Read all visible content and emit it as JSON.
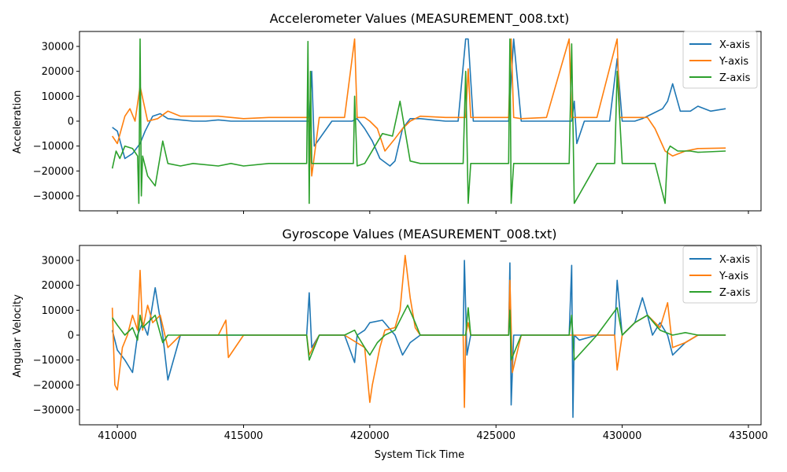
{
  "chart_data": [
    {
      "type": "line",
      "title": "Accelerometer Values (MEASUREMENT_008.txt)",
      "xlabel": "",
      "ylabel": "Acceleration",
      "xlim": [
        408500,
        435500
      ],
      "ylim": [
        -36000,
        36000
      ],
      "xticks": [
        410000,
        415000,
        420000,
        425000,
        430000,
        435000
      ],
      "xtick_labels_shown": false,
      "yticks": [
        -30000,
        -20000,
        -10000,
        0,
        10000,
        20000,
        30000
      ],
      "ytick_labels": [
        "−30000",
        "−20000",
        "−10000",
        "0",
        "10000",
        "20000",
        "30000"
      ],
      "legend": "top-right",
      "grid": false,
      "series": [
        {
          "name": "X-axis",
          "color": "#1f77b4",
          "x": [
            409800,
            410000,
            410300,
            410600,
            410900,
            411100,
            411400,
            411700,
            412000,
            412500,
            413000,
            413500,
            414000,
            414500,
            415000,
            416000,
            417000,
            417600,
            417700,
            417800,
            418500,
            419300,
            419500,
            419800,
            420100,
            420400,
            420800,
            421000,
            421300,
            421600,
            422000,
            422500,
            423000,
            423500,
            423800,
            423900,
            424100,
            424500,
            425000,
            425500,
            425700,
            426000,
            426500,
            427000,
            427500,
            428000,
            428100,
            428200,
            428500,
            429000,
            429500,
            429800,
            430000,
            430500,
            430800,
            431200,
            431600,
            431800,
            432000,
            432300,
            432700,
            433000,
            433500,
            434100
          ],
          "y": [
            -2500,
            -4000,
            -15000,
            -13000,
            -9000,
            -4000,
            2000,
            3000,
            1000,
            500,
            0,
            0,
            500,
            0,
            0,
            0,
            0,
            0,
            20000,
            -10000,
            0,
            0,
            1000,
            -3000,
            -8000,
            -15000,
            -18000,
            -16000,
            -3000,
            1000,
            1000,
            500,
            0,
            0,
            33000,
            33000,
            0,
            0,
            0,
            0,
            33000,
            0,
            0,
            0,
            0,
            0,
            8000,
            -9000,
            0,
            0,
            0,
            25000,
            0,
            0,
            1000,
            3000,
            5000,
            8000,
            15000,
            4000,
            4000,
            6000,
            4000,
            5000
          ]
        },
        {
          "name": "Y-axis",
          "color": "#ff7f0e",
          "x": [
            409800,
            410000,
            410300,
            410500,
            410700,
            410900,
            411200,
            411600,
            412000,
            412500,
            413000,
            414000,
            415000,
            416000,
            417000,
            417600,
            417700,
            418000,
            419000,
            419400,
            419500,
            419800,
            420000,
            420300,
            420600,
            421000,
            421300,
            421600,
            422000,
            423000,
            423800,
            423900,
            424000,
            425000,
            425500,
            425600,
            425700,
            426000,
            427000,
            427900,
            428000,
            428100,
            429000,
            429800,
            429900,
            430500,
            431000,
            431300,
            431700,
            432000,
            432500,
            433000,
            434100
          ],
          "y": [
            -6000,
            -9000,
            2000,
            5000,
            0,
            14000,
            0,
            1000,
            4000,
            2000,
            2000,
            2000,
            1000,
            1500,
            1500,
            1500,
            -22000,
            1500,
            1500,
            33000,
            1500,
            1500,
            0,
            -3000,
            -12000,
            -7000,
            -3000,
            0,
            2000,
            1500,
            1500,
            21000,
            1500,
            1500,
            1500,
            33000,
            1500,
            1000,
            1500,
            33000,
            1500,
            1500,
            1500,
            33000,
            1500,
            1500,
            1500,
            -3000,
            -12000,
            -14000,
            -12000,
            -11000,
            -10800
          ]
        },
        {
          "name": "Z-axis",
          "color": "#2ca02c",
          "x": [
            409800,
            409950,
            410100,
            410300,
            410600,
            410800,
            410850,
            410900,
            410950,
            411000,
            411200,
            411500,
            411800,
            412000,
            412500,
            413000,
            414000,
            414500,
            415000,
            416000,
            417000,
            417500,
            417550,
            417600,
            417650,
            417700,
            418000,
            419000,
            419350,
            419400,
            419500,
            419800,
            420500,
            420900,
            421200,
            421600,
            422000,
            423000,
            423700,
            423800,
            423900,
            424000,
            425000,
            425500,
            425550,
            425600,
            425700,
            426000,
            427000,
            427900,
            428000,
            428100,
            429000,
            429700,
            429800,
            430000,
            431000,
            431300,
            431700,
            431800,
            431900,
            432200,
            432700,
            433000,
            434100
          ],
          "y": [
            -19000,
            -12000,
            -15000,
            -10000,
            -11000,
            -14000,
            -33000,
            33000,
            -30000,
            -14000,
            -22000,
            -26000,
            -8000,
            -17000,
            -18000,
            -17000,
            -18000,
            -17000,
            -18000,
            -17000,
            -17000,
            -17000,
            32000,
            -33000,
            20000,
            -17000,
            -17000,
            -17000,
            -17000,
            10000,
            -18000,
            -17000,
            -5000,
            -6000,
            8000,
            -16000,
            -17000,
            -17000,
            -17000,
            20000,
            -33000,
            -17000,
            -17000,
            -17000,
            33000,
            -33000,
            -17000,
            -17000,
            -17000,
            -17000,
            31000,
            -33000,
            -17000,
            -17000,
            20000,
            -17000,
            -17000,
            -17000,
            -33000,
            -12000,
            -10000,
            -12000,
            -12000,
            -12500,
            -12000
          ]
        }
      ]
    },
    {
      "type": "line",
      "title": "Gyroscope Values (MEASUREMENT_008.txt)",
      "xlabel": "System Tick Time",
      "ylabel": "Angular Velocity",
      "xlim": [
        408500,
        435500
      ],
      "ylim": [
        -36000,
        36000
      ],
      "xticks": [
        410000,
        415000,
        420000,
        425000,
        430000,
        435000
      ],
      "xtick_labels": [
        "410000",
        "415000",
        "420000",
        "425000",
        "430000",
        "435000"
      ],
      "yticks": [
        -30000,
        -20000,
        -10000,
        0,
        10000,
        20000,
        30000
      ],
      "ytick_labels": [
        "−30000",
        "−20000",
        "−10000",
        "0",
        "10000",
        "20000",
        "30000"
      ],
      "legend": "top-right",
      "grid": false,
      "series": [
        {
          "name": "X-axis",
          "color": "#1f77b4",
          "x": [
            409800,
            410000,
            410300,
            410600,
            410800,
            411000,
            411200,
            411500,
            411800,
            412000,
            412500,
            413000,
            414000,
            415000,
            416000,
            417000,
            417500,
            417600,
            417700,
            418000,
            419000,
            419400,
            419500,
            419800,
            420000,
            420500,
            421000,
            421300,
            421600,
            422000,
            423000,
            423700,
            423750,
            423850,
            424000,
            425000,
            425500,
            425550,
            425600,
            425700,
            426000,
            427000,
            427900,
            428000,
            428050,
            428100,
            428300,
            429000,
            429700,
            429800,
            430000,
            430500,
            430800,
            431000,
            431200,
            431500,
            431800,
            432000,
            432500,
            433000,
            434100
          ],
          "y": [
            2000,
            -6000,
            -10000,
            -15000,
            0,
            5000,
            0,
            19000,
            0,
            -18000,
            0,
            0,
            0,
            0,
            0,
            0,
            0,
            17000,
            -5000,
            0,
            0,
            -11000,
            0,
            2000,
            5000,
            6000,
            0,
            -8000,
            -3000,
            0,
            0,
            0,
            30000,
            -8000,
            0,
            0,
            0,
            29000,
            -28000,
            0,
            0,
            0,
            0,
            28000,
            -33000,
            0,
            -2000,
            0,
            0,
            22000,
            0,
            5000,
            15000,
            8000,
            0,
            5000,
            0,
            -8000,
            -3000,
            0,
            0
          ]
        },
        {
          "name": "Y-axis",
          "color": "#ff7f0e",
          "x": [
            409800,
            409900,
            410000,
            410200,
            410400,
            410600,
            410800,
            410900,
            411000,
            411200,
            411400,
            411700,
            412000,
            412500,
            413000,
            414000,
            414300,
            414400,
            415000,
            416000,
            417000,
            417500,
            417600,
            418000,
            419000,
            419800,
            420000,
            420100,
            420200,
            420400,
            420600,
            421000,
            421200,
            421400,
            421600,
            421800,
            422000,
            423000,
            423700,
            423750,
            423800,
            423900,
            424000,
            425000,
            425500,
            425550,
            425650,
            426000,
            427000,
            428000,
            429000,
            429700,
            429800,
            430000,
            430500,
            431000,
            431500,
            431800,
            432000,
            432500,
            433000,
            434100
          ],
          "y": [
            11000,
            -20000,
            -22000,
            -5000,
            0,
            8000,
            2000,
            26000,
            2000,
            12000,
            5000,
            8000,
            -5000,
            0,
            0,
            0,
            6000,
            -9000,
            0,
            0,
            0,
            0,
            -8000,
            0,
            0,
            -5000,
            -27000,
            -20000,
            -15000,
            -5000,
            2000,
            3000,
            10000,
            32000,
            15000,
            3000,
            0,
            0,
            0,
            -29000,
            0,
            5000,
            0,
            0,
            0,
            22000,
            -15000,
            0,
            0,
            0,
            0,
            0,
            -14000,
            0,
            5000,
            8000,
            3000,
            13000,
            -5000,
            -3000,
            0,
            0
          ]
        },
        {
          "name": "Z-axis",
          "color": "#2ca02c",
          "x": [
            409800,
            410000,
            410300,
            410600,
            410800,
            410900,
            411000,
            411200,
            411500,
            411800,
            412000,
            412500,
            413000,
            414000,
            415000,
            416000,
            417000,
            417500,
            417600,
            418000,
            419000,
            419400,
            419500,
            419800,
            420000,
            420300,
            420600,
            421000,
            421300,
            421500,
            421800,
            422000,
            423000,
            423800,
            423900,
            424000,
            425000,
            425500,
            425550,
            425600,
            426000,
            427000,
            427900,
            428000,
            428100,
            429000,
            429800,
            430000,
            430500,
            431000,
            431500,
            432000,
            432500,
            433000,
            434100
          ],
          "y": [
            7000,
            4000,
            0,
            3000,
            -2000,
            8000,
            3000,
            5000,
            8000,
            -3000,
            0,
            0,
            0,
            0,
            0,
            0,
            0,
            0,
            -10000,
            0,
            0,
            2000,
            0,
            -5000,
            -8000,
            -3000,
            0,
            2000,
            8000,
            12000,
            5000,
            0,
            0,
            0,
            11000,
            0,
            0,
            0,
            10000,
            -10000,
            0,
            0,
            0,
            8000,
            -10000,
            0,
            11000,
            0,
            5000,
            8000,
            2000,
            0,
            1000,
            0,
            0
          ]
        }
      ]
    }
  ]
}
